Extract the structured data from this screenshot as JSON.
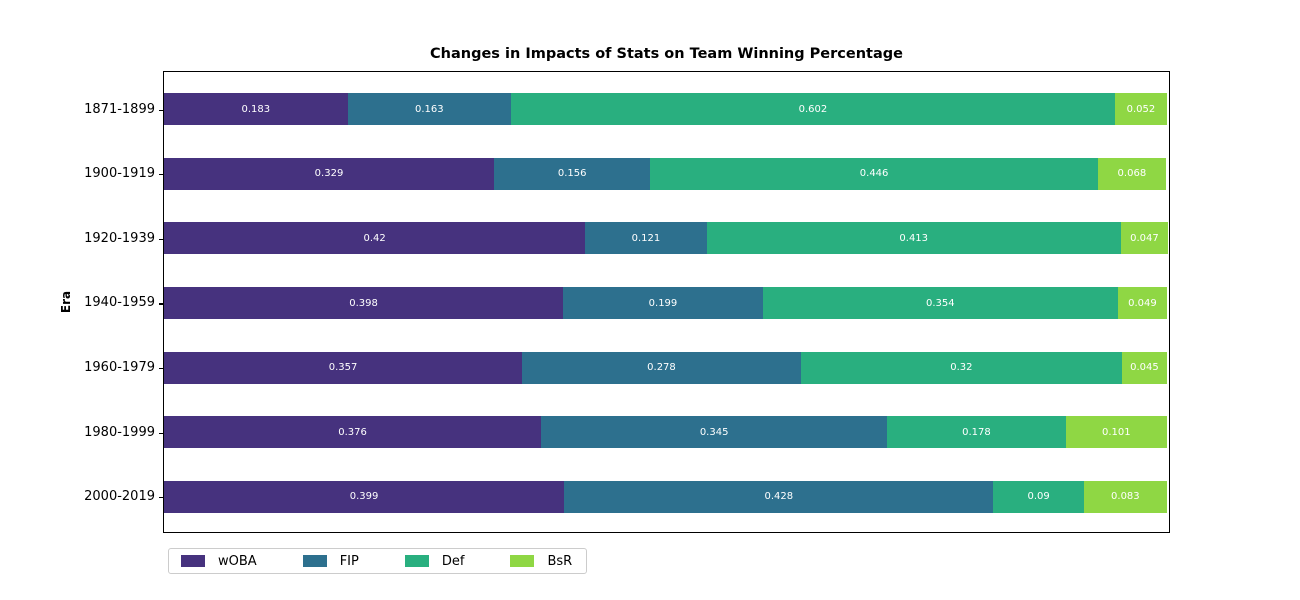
{
  "figure": {
    "title": "Changes in Impacts of Stats on Team Winning Percentage",
    "y_axis_label": "Era"
  },
  "chart_data": {
    "type": "bar",
    "orientation": "horizontal",
    "stacked": true,
    "title": "Changes in Impacts of Stats on Team Winning Percentage",
    "xlabel": "",
    "ylabel": "Era",
    "categories": [
      "1871-1899",
      "1900-1919",
      "1920-1939",
      "1940-1959",
      "1960-1979",
      "1980-1999",
      "2000-2019"
    ],
    "series": [
      {
        "name": "wOBA",
        "color": "#46327e",
        "values": [
          0.183,
          0.329,
          0.42,
          0.398,
          0.357,
          0.376,
          0.399
        ]
      },
      {
        "name": "FIP",
        "color": "#2d708e",
        "values": [
          0.163,
          0.156,
          0.121,
          0.199,
          0.278,
          0.345,
          0.428
        ]
      },
      {
        "name": "Def",
        "color": "#29af7f",
        "values": [
          0.602,
          0.446,
          0.413,
          0.354,
          0.32,
          0.178,
          0.09
        ]
      },
      {
        "name": "BsR",
        "color": "#8fd744",
        "values": [
          0.052,
          0.068,
          0.047,
          0.049,
          0.045,
          0.101,
          0.083
        ]
      }
    ],
    "xlim": [
      0,
      1.002
    ],
    "grid": false,
    "legend_position": "bottom-left-outside",
    "bar_label_color": "#ffffff",
    "axis_color": "#000000",
    "legend_border_color": "#cccccc"
  }
}
